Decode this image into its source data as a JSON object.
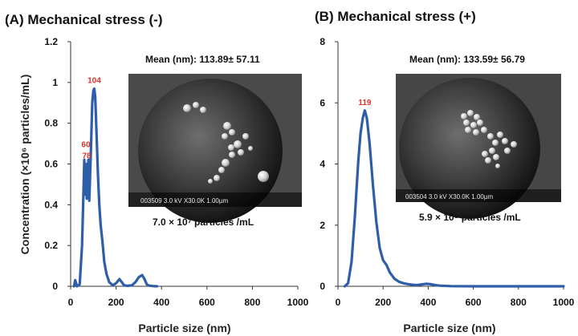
{
  "chart_data": [
    {
      "type": "line",
      "title": "(A) Mechanical stress (-)",
      "xlabel": "Particle size (nm)",
      "ylabel": "Concentration (×10⁶ particles/mL)",
      "xlim": [
        0,
        1000
      ],
      "ylim": [
        0,
        1.2
      ],
      "xticks": [
        "0",
        "200",
        "400",
        "600",
        "800",
        "1000"
      ],
      "yticks": [
        "0",
        "0.2",
        "0.4",
        "0.6",
        "0.8",
        "1",
        "1.2"
      ],
      "ytick_values": [
        0,
        0.2,
        0.4,
        0.6,
        0.8,
        1.0,
        1.2
      ],
      "mean_text": "Mean (nm): 113.89± 57.11",
      "count_text": "7.0 × 10⁷ particles /mL",
      "image_scalebar_text": "003509 3.0 kV X30.0K 1.00µm",
      "peak_labels": [
        {
          "text": "104",
          "x": 104,
          "y": 0.97
        },
        {
          "text": "60",
          "x": 60,
          "y": 0.62
        },
        {
          "text": "78",
          "x": 78,
          "y": 0.62
        }
      ],
      "series": [
        {
          "x": [
            15,
            20,
            28,
            40,
            50,
            57,
            60,
            63,
            67,
            71,
            74,
            78,
            82,
            86,
            90,
            95,
            100,
            104,
            108,
            113,
            120,
            126,
            132,
            140,
            148,
            158,
            170,
            185,
            200,
            215,
            225,
            235,
            250,
            270,
            285,
            300,
            315,
            325,
            335,
            345,
            360,
            380
          ],
          "y": [
            0,
            0.03,
            0,
            0.01,
            0.2,
            0.48,
            0.62,
            0.45,
            0.6,
            0.43,
            0.55,
            0.62,
            0.42,
            0.55,
            0.7,
            0.9,
            0.96,
            0.97,
            0.93,
            0.78,
            0.55,
            0.4,
            0.3,
            0.22,
            0.12,
            0.06,
            0.02,
            0.005,
            0.015,
            0.035,
            0.02,
            0.005,
            0.002,
            0.005,
            0.02,
            0.045,
            0.055,
            0.035,
            0.01,
            0.003,
            0.001,
            0
          ]
        }
      ]
    },
    {
      "type": "line",
      "title": "(B) Mechanical stress (+)",
      "xlabel": "Particle size (nm)",
      "ylabel": "",
      "xlim": [
        0,
        1000
      ],
      "ylim": [
        0,
        8
      ],
      "xticks": [
        "0",
        "200",
        "400",
        "600",
        "800",
        "1000"
      ],
      "yticks": [
        "0",
        "2",
        "4",
        "6",
        "8"
      ],
      "ytick_values": [
        0,
        2,
        4,
        6,
        8
      ],
      "mean_text": "Mean (nm): 133.59± 56.79",
      "count_text": "5.9 × 10⁸ particles /mL",
      "image_scalebar_text": "003504 3.0 kV X30.0K 1.00µm",
      "peak_labels": [
        {
          "text": "119",
          "x": 119,
          "y": 5.75
        }
      ],
      "series": [
        {
          "x": [
            30,
            45,
            60,
            75,
            90,
            100,
            110,
            119,
            128,
            140,
            155,
            170,
            185,
            200,
            215,
            230,
            250,
            270,
            290,
            310,
            330,
            350,
            370,
            390,
            410,
            430,
            450,
            500,
            600,
            700,
            800,
            900,
            1000
          ],
          "y": [
            0,
            0.1,
            0.8,
            2.3,
            4.1,
            5.0,
            5.5,
            5.75,
            5.5,
            4.7,
            3.3,
            2.1,
            1.25,
            0.85,
            0.7,
            0.45,
            0.25,
            0.15,
            0.1,
            0.07,
            0.05,
            0.04,
            0.06,
            0.08,
            0.07,
            0.04,
            0.02,
            0.005,
            0,
            0,
            0,
            0,
            0
          ]
        }
      ]
    }
  ]
}
